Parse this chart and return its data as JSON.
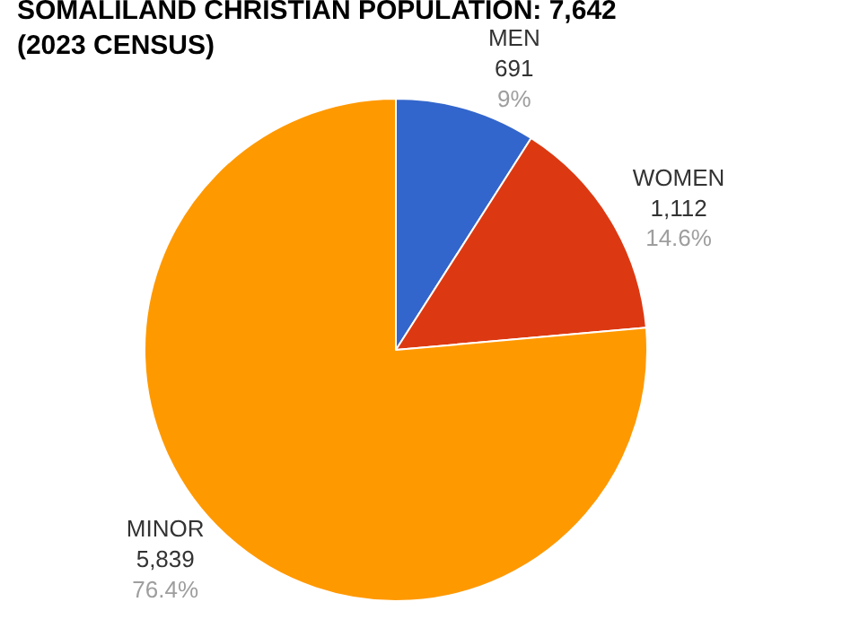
{
  "chart_data": {
    "type": "pie",
    "title": "SOMALILAND CHRISTIAN POPULATION: 7,642 (2023 CENSUS)",
    "categories": [
      "MEN",
      "WOMEN",
      "MINOR"
    ],
    "values": [
      691,
      1112,
      5839
    ],
    "colors": [
      "#3366cc",
      "#dc3912",
      "#ff9900"
    ],
    "value_labels": [
      "691\n9%",
      "1,112\n14.6%",
      "5,839\n76.4%"
    ],
    "legend": false
  }
}
